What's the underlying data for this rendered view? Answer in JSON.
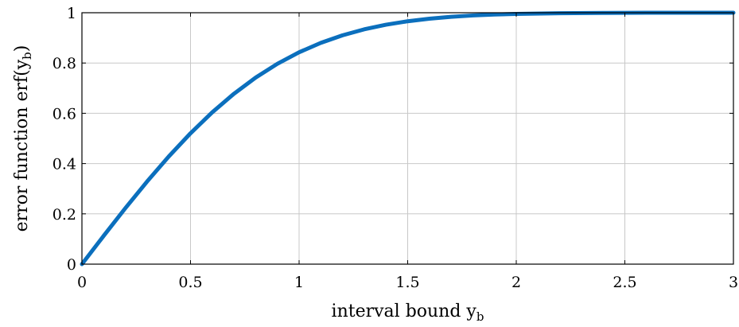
{
  "chart_data": {
    "type": "line",
    "title": "",
    "xlabel": "interval bound y_b",
    "ylabel": "error function erf(y_b)",
    "xlim": [
      0,
      3
    ],
    "ylim": [
      0,
      1
    ],
    "x_ticks": [
      0,
      0.5,
      1,
      1.5,
      2,
      2.5,
      3
    ],
    "y_ticks": [
      0,
      0.2,
      0.4,
      0.6,
      0.8,
      1
    ],
    "x_tick_labels": [
      "0",
      "0.5",
      "1",
      "1.5",
      "2",
      "2.5",
      "3"
    ],
    "y_tick_labels": [
      "0",
      "0.2",
      "0.4",
      "0.6",
      "0.8",
      "1"
    ],
    "grid": true,
    "series": [
      {
        "color": "#0b6fbd",
        "x": [
          0,
          0.1,
          0.2,
          0.3,
          0.4,
          0.5,
          0.6,
          0.7,
          0.8,
          0.9,
          1.0,
          1.1,
          1.2,
          1.3,
          1.4,
          1.5,
          1.6,
          1.7,
          1.8,
          1.9,
          2.0,
          2.2,
          2.4,
          2.6,
          2.8,
          3.0
        ],
        "y": [
          0,
          0.1125,
          0.2227,
          0.3286,
          0.4284,
          0.5205,
          0.6039,
          0.6778,
          0.7421,
          0.7969,
          0.8427,
          0.8802,
          0.9103,
          0.934,
          0.9523,
          0.9661,
          0.9763,
          0.9838,
          0.9891,
          0.9928,
          0.9953,
          0.9981,
          0.9993,
          0.9998,
          0.9999,
          1.0
        ]
      }
    ]
  },
  "colors": {
    "curve": "#0b6fbd",
    "grid": "#c8c8c8",
    "frame": "#000000"
  }
}
